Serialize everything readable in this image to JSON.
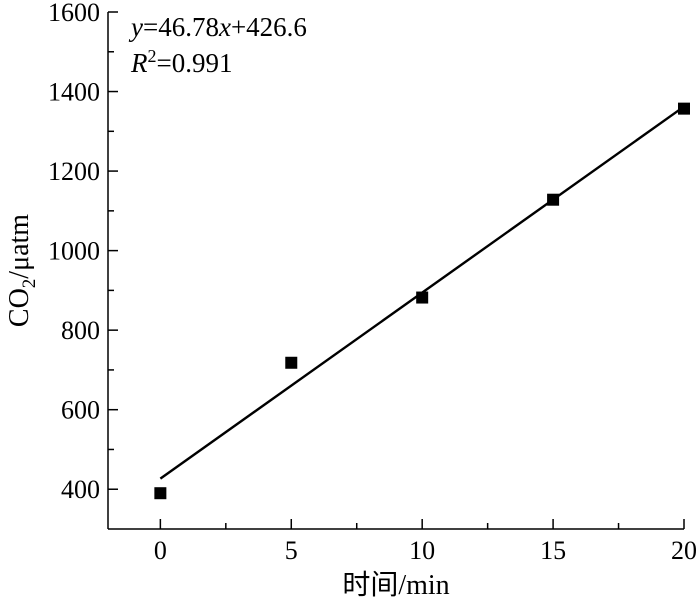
{
  "chart_data": {
    "type": "scatter",
    "title": "",
    "xlabel": "时间/min",
    "ylabel_main": "CO",
    "ylabel_sub": "2",
    "ylabel_unit": "/μatm",
    "xlim": [
      -2,
      20
    ],
    "ylim": [
      300,
      1600
    ],
    "xticks": [
      0,
      5,
      10,
      15,
      20
    ],
    "xtick_labels": [
      "0",
      "5",
      "10",
      "15",
      "20"
    ],
    "yticks": [
      400,
      600,
      800,
      1000,
      1200,
      1400,
      1600
    ],
    "ytick_labels": [
      "400",
      "600",
      "800",
      "1000",
      "1200",
      "1400",
      "1600"
    ],
    "points": [
      {
        "x": 0,
        "y": 390
      },
      {
        "x": 5,
        "y": 718
      },
      {
        "x": 10,
        "y": 882
      },
      {
        "x": 15,
        "y": 1128
      },
      {
        "x": 20,
        "y": 1357
      }
    ],
    "fit": {
      "slope": 46.78,
      "intercept": 426.6,
      "x_range": [
        0,
        20
      ]
    },
    "equation": {
      "y": "y",
      "eq_rest": "=46.78",
      "x": "x",
      "tail": "+426.6"
    },
    "r2": {
      "r": "R",
      "sup": "2",
      "value": "=0.991"
    },
    "grid": false,
    "legend": "none",
    "marker": "square",
    "color": "#000000"
  }
}
